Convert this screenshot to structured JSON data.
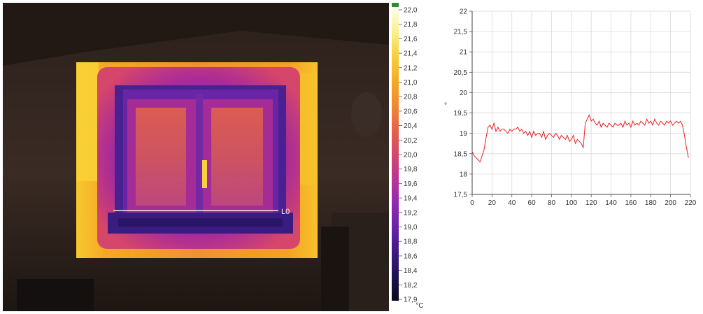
{
  "thermal_image": {
    "line_label": "L0"
  },
  "color_scale": {
    "labels": [
      "22,0",
      "21,8",
      "21,6",
      "21,4",
      "21,2",
      "21,0",
      "20,8",
      "20,6",
      "20,4",
      "20,2",
      "20,0",
      "19,8",
      "19,6",
      "19,4",
      "19,2",
      "19,0",
      "18,8",
      "18,6",
      "18,4",
      "18,2",
      "17,9"
    ],
    "unit": "°C",
    "colors": {
      "top_indicator": "#2e8b3a",
      "gradient": [
        "#fefef0",
        "#fbf090",
        "#f8cf3a",
        "#f6ac22",
        "#f08a32",
        "#e66448",
        "#d44868",
        "#bb3493",
        "#932ab0",
        "#6a22aa",
        "#3f1a82",
        "#1f1250",
        "#080818"
      ]
    }
  },
  "chart_data": {
    "type": "line",
    "title": "",
    "xlabel": "",
    "ylabel": "°",
    "xlim": [
      0,
      220
    ],
    "ylim": [
      17.5,
      22
    ],
    "x_ticks": [
      "0",
      "20",
      "40",
      "60",
      "80",
      "100",
      "120",
      "140",
      "160",
      "180",
      "200",
      "220"
    ],
    "y_ticks": [
      "22",
      "21,5",
      "21",
      "20,5",
      "20",
      "19,5",
      "19",
      "18,5",
      "18",
      "17,5"
    ],
    "grid": true,
    "line_color": "#ee2222",
    "series": [
      {
        "name": "",
        "x": [
          0,
          2,
          4,
          6,
          8,
          10,
          12,
          14,
          16,
          18,
          20,
          22,
          24,
          26,
          28,
          30,
          32,
          34,
          36,
          38,
          40,
          42,
          44,
          46,
          48,
          50,
          52,
          54,
          56,
          58,
          60,
          62,
          64,
          66,
          68,
          70,
          72,
          74,
          76,
          78,
          80,
          82,
          84,
          86,
          88,
          90,
          92,
          94,
          96,
          98,
          100,
          102,
          104,
          106,
          108,
          110,
          112,
          114,
          116,
          118,
          120,
          122,
          124,
          126,
          128,
          130,
          132,
          134,
          136,
          138,
          140,
          142,
          144,
          146,
          148,
          150,
          152,
          154,
          156,
          158,
          160,
          162,
          164,
          166,
          168,
          170,
          172,
          174,
          176,
          178,
          180,
          182,
          184,
          186,
          188,
          190,
          192,
          194,
          196,
          198,
          200,
          202,
          204,
          206,
          208,
          210,
          212,
          214,
          216,
          218
        ],
        "values": [
          18.55,
          18.45,
          18.4,
          18.35,
          18.3,
          18.45,
          18.6,
          18.9,
          19.15,
          19.2,
          19.1,
          19.25,
          19.05,
          19.15,
          19.05,
          19.1,
          19.1,
          19.05,
          19.0,
          19.1,
          19.05,
          19.1,
          19.1,
          19.15,
          19.05,
          19.1,
          19.0,
          19.05,
          18.95,
          19.05,
          18.9,
          19.05,
          18.95,
          19.0,
          19.0,
          18.9,
          19.05,
          18.85,
          18.95,
          19.0,
          18.95,
          18.9,
          19.0,
          18.95,
          18.85,
          18.95,
          18.9,
          18.85,
          18.95,
          18.8,
          18.85,
          18.95,
          18.75,
          18.85,
          18.8,
          18.75,
          18.65,
          19.25,
          19.35,
          19.45,
          19.3,
          19.35,
          19.25,
          19.2,
          19.3,
          19.15,
          19.25,
          19.2,
          19.15,
          19.25,
          19.2,
          19.15,
          19.25,
          19.2,
          19.2,
          19.25,
          19.15,
          19.3,
          19.2,
          19.25,
          19.15,
          19.3,
          19.2,
          19.25,
          19.2,
          19.3,
          19.25,
          19.2,
          19.35,
          19.25,
          19.3,
          19.2,
          19.35,
          19.25,
          19.2,
          19.3,
          19.25,
          19.2,
          19.3,
          19.25,
          19.3,
          19.2,
          19.25,
          19.3,
          19.25,
          19.3,
          19.2,
          18.95,
          18.65,
          18.4
        ]
      }
    ]
  }
}
